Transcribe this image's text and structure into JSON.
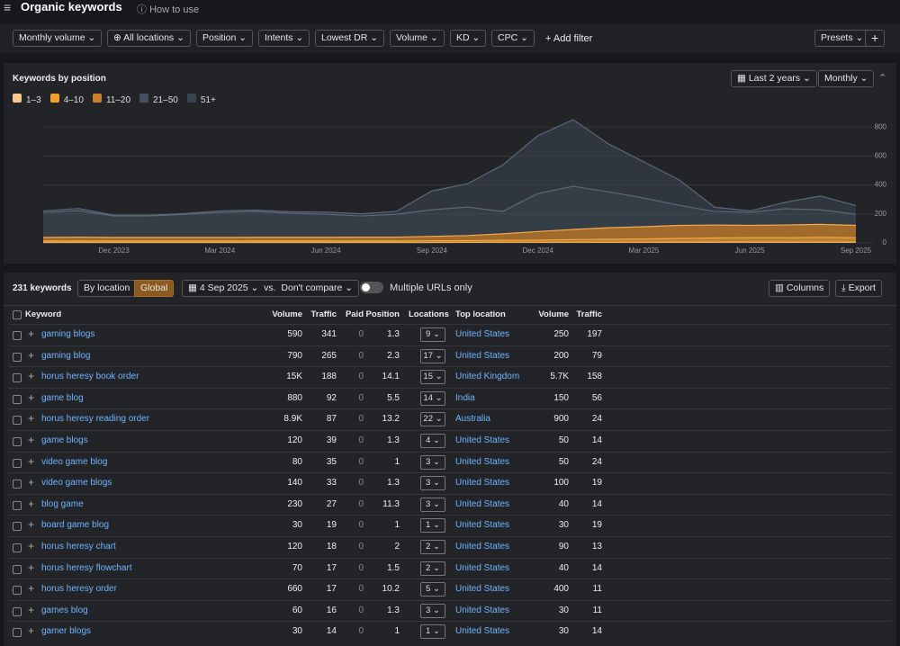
{
  "header": {
    "title": "Organic keywords",
    "help": "How to use"
  },
  "filters": {
    "items": [
      "Monthly volume",
      "All locations",
      "Position",
      "Intents",
      "Lowest DR",
      "Volume",
      "KD",
      "CPC"
    ],
    "add": "Add filter",
    "presets": "Presets"
  },
  "chart_panel": {
    "title": "Keywords by position",
    "range": "Last 2 years",
    "interval": "Monthly"
  },
  "chart_data": {
    "type": "stacked_area",
    "categories": [
      null,
      null,
      "Dec 2023",
      null,
      null,
      "Mar 2024",
      null,
      null,
      "Jun 2024",
      null,
      null,
      "Sep 2024",
      null,
      null,
      "Dec 2024",
      null,
      null,
      "Mar 2025",
      null,
      null,
      "Jun 2025",
      null,
      null,
      "Sep 2025"
    ],
    "series": [
      {
        "name": "1–3",
        "color": "#f7c98f",
        "values": [
          3,
          3,
          3,
          3,
          3,
          3,
          3,
          3,
          3,
          3,
          3,
          3,
          4,
          4,
          4,
          5,
          5,
          5,
          6,
          6,
          6,
          6,
          6,
          6
        ]
      },
      {
        "name": "4–10",
        "color": "#f0a030",
        "values": [
          10,
          10,
          10,
          10,
          10,
          10,
          10,
          10,
          10,
          10,
          10,
          12,
          12,
          14,
          15,
          18,
          20,
          22,
          25,
          28,
          30,
          30,
          32,
          30
        ]
      },
      {
        "name": "11–20",
        "color": "#c9812c",
        "values": [
          25,
          27,
          25,
          25,
          25,
          25,
          26,
          26,
          26,
          27,
          27,
          30,
          35,
          45,
          60,
          70,
          80,
          85,
          90,
          90,
          85,
          88,
          90,
          85
        ]
      },
      {
        "name": "21–50",
        "color": "#465261",
        "values": [
          173,
          183,
          148,
          148,
          160,
          173,
          178,
          166,
          159,
          146,
          158,
          184,
          197,
          154,
          262,
          298,
          248,
          198,
          139,
          93,
          90,
          112,
          101,
          77
        ]
      },
      {
        "name": "51+",
        "color": "#3a4553",
        "values": [
          10,
          15,
          5,
          5,
          5,
          10,
          10,
          10,
          15,
          15,
          20,
          130,
          160,
          320,
          400,
          460,
          330,
          250,
          175,
          30,
          10,
          45,
          95,
          60
        ]
      }
    ],
    "ylim": [
      0,
      870
    ],
    "yticks": [
      0,
      200,
      400,
      600,
      800
    ],
    "grid": true
  },
  "toolbar": {
    "count": "231 keywords",
    "by_location": "By location",
    "global": "Global",
    "date": "4 Sep 2025",
    "vs": "vs.",
    "compare": "Don't compare",
    "multiple": "Multiple URLs only",
    "columns": "Columns",
    "export": "Export"
  },
  "table": {
    "headers": [
      "Keyword",
      "Volume",
      "Traffic",
      "Paid",
      "Position",
      "Locations",
      "Top location",
      "Volume",
      "Traffic"
    ],
    "rows": [
      [
        "gaming blogs",
        "590",
        "341",
        "0",
        "1.3",
        "9",
        "United States",
        "250",
        "197"
      ],
      [
        "gaming blog",
        "790",
        "265",
        "0",
        "2.3",
        "17",
        "United States",
        "200",
        "79"
      ],
      [
        "horus heresy book order",
        "15K",
        "188",
        "0",
        "14.1",
        "15",
        "United Kingdom",
        "5.7K",
        "158"
      ],
      [
        "game blog",
        "880",
        "92",
        "0",
        "5.5",
        "14",
        "India",
        "150",
        "56"
      ],
      [
        "horus heresy reading order",
        "8.9K",
        "87",
        "0",
        "13.2",
        "22",
        "Australia",
        "900",
        "24"
      ],
      [
        "game blogs",
        "120",
        "39",
        "0",
        "1.3",
        "4",
        "United States",
        "50",
        "14"
      ],
      [
        "video game blog",
        "80",
        "35",
        "0",
        "1",
        "3",
        "United States",
        "50",
        "24"
      ],
      [
        "video game blogs",
        "140",
        "33",
        "0",
        "1.3",
        "3",
        "United States",
        "100",
        "19"
      ],
      [
        "blog game",
        "230",
        "27",
        "0",
        "11.3",
        "3",
        "United States",
        "40",
        "14"
      ],
      [
        "board game blog",
        "30",
        "19",
        "0",
        "1",
        "1",
        "United States",
        "30",
        "19"
      ],
      [
        "horus heresy chart",
        "120",
        "18",
        "0",
        "2",
        "2",
        "United States",
        "90",
        "13"
      ],
      [
        "horus heresy flowchart",
        "70",
        "17",
        "0",
        "1.5",
        "2",
        "United States",
        "40",
        "14"
      ],
      [
        "horus heresy order",
        "660",
        "17",
        "0",
        "10.2",
        "5",
        "United States",
        "400",
        "11"
      ],
      [
        "games blog",
        "60",
        "16",
        "0",
        "1.3",
        "3",
        "United States",
        "30",
        "11"
      ],
      [
        "gamer blogs",
        "30",
        "14",
        "0",
        "1",
        "1",
        "United States",
        "30",
        "14"
      ]
    ]
  }
}
